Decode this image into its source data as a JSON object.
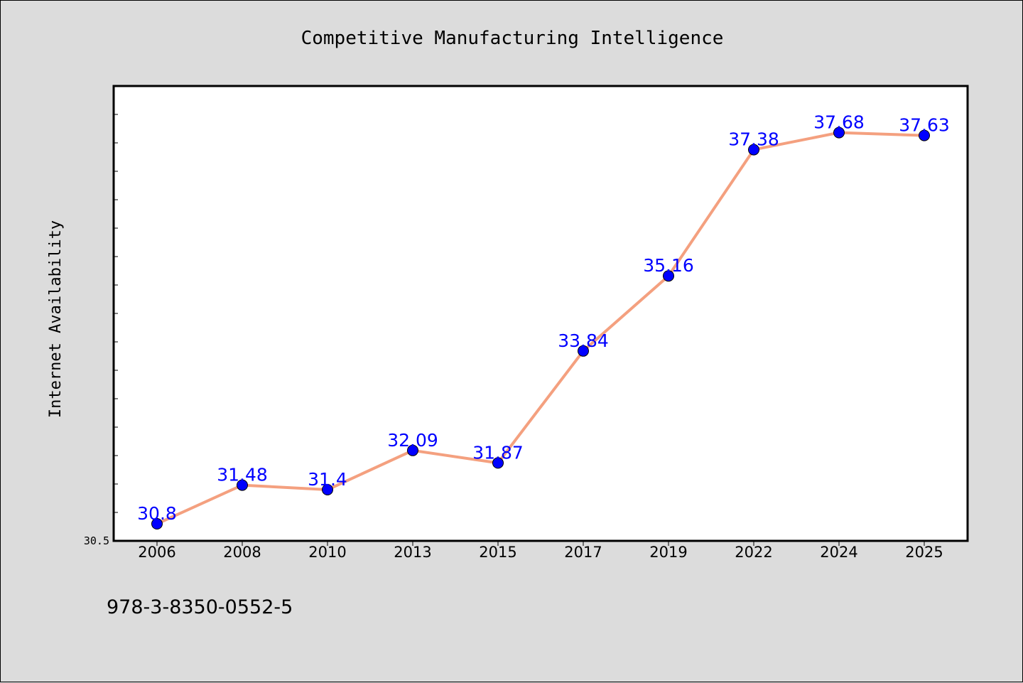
{
  "chart_data": {
    "type": "line",
    "title": "Competitive Manufacturing Intelligence",
    "xlabel": "",
    "ylabel": "Internet Availability",
    "categories": [
      "2006",
      "2008",
      "2010",
      "2013",
      "2015",
      "2017",
      "2019",
      "2022",
      "2024",
      "2025"
    ],
    "values": [
      30.8,
      31.48,
      31.4,
      32.09,
      31.87,
      33.84,
      35.16,
      37.38,
      37.68,
      37.63
    ],
    "data_labels": [
      "30.8",
      "31.48",
      "31.4",
      "32.09",
      "31.87",
      "33.84",
      "35.16",
      "37.38",
      "37.68",
      "37.63"
    ],
    "ylim": [
      30.5,
      38.5
    ],
    "y_tick_labels": [
      "30.5"
    ],
    "grid": false,
    "legend": "none",
    "colors": {
      "line": "#f4a07f",
      "marker": "#0000ff",
      "label": "#0000ff",
      "plot_bg": "#ffffff",
      "page_bg": "#dcdcdc"
    }
  },
  "footnote": "978-3-8350-0552-5"
}
